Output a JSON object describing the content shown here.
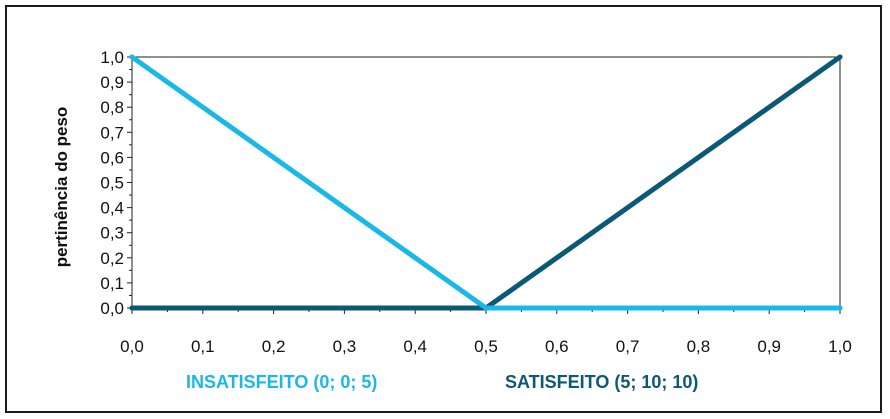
{
  "chart_data": {
    "type": "line",
    "title": "",
    "xlabel": "",
    "ylabel": "pertinência do peso",
    "xlim": [
      0,
      1
    ],
    "ylim": [
      0,
      1
    ],
    "grid": false,
    "legend_placement": "bottom",
    "x_tick_labels": [
      "0,0",
      "0,1",
      "0,2",
      "0,3",
      "0,4",
      "0,5",
      "0,6",
      "0,7",
      "0,8",
      "0,9",
      "1,0"
    ],
    "y_tick_labels": [
      "0,0",
      "0,1",
      "0,2",
      "0,3",
      "0,4",
      "0,5",
      "0,6",
      "0,7",
      "0,8",
      "0,9",
      "1,0"
    ],
    "series": [
      {
        "name": "INSATISFEITO (0; 0; 5)",
        "color": "#1ab8e8",
        "x": [
          0.0,
          0.5,
          1.0
        ],
        "y": [
          1.0,
          0.0,
          0.0
        ]
      },
      {
        "name": "SATISFEITO (5; 10; 10)",
        "color": "#0b5877",
        "x": [
          0.0,
          0.5,
          1.0
        ],
        "y": [
          0.0,
          0.0,
          1.0
        ]
      }
    ]
  }
}
